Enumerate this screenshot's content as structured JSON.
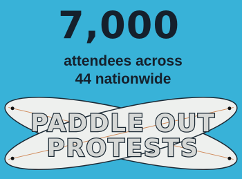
{
  "headline": {
    "number": "7,000",
    "lines": [
      "attendees across",
      "44 nationwide"
    ]
  },
  "title": {
    "lines": [
      "PADDLE OUT",
      "PROTESTS"
    ]
  }
}
